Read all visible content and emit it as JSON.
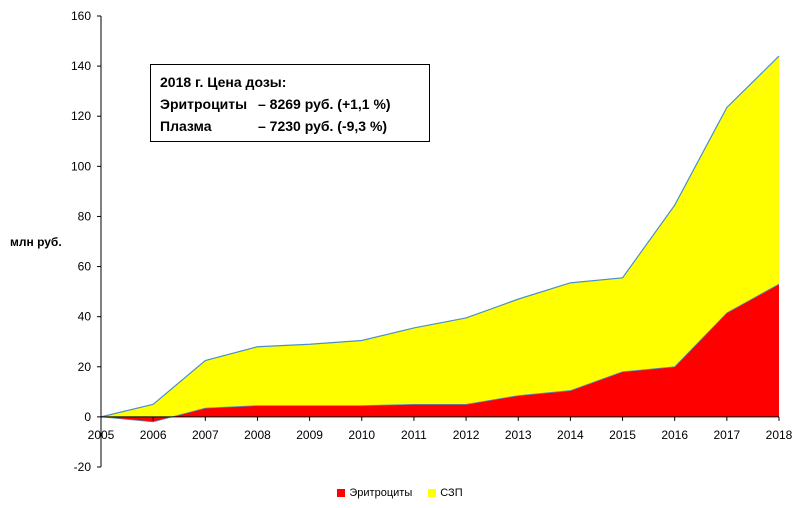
{
  "chart_data": {
    "type": "area",
    "stacked": true,
    "x": [
      2005,
      2006,
      2007,
      2008,
      2009,
      2010,
      2011,
      2012,
      2013,
      2014,
      2015,
      2016,
      2017,
      2018
    ],
    "series": [
      {
        "name": "Эритроциты",
        "color": "#ff0000",
        "values": [
          0,
          -2,
          3.5,
          4.5,
          4.5,
          4.5,
          5,
          5,
          8.5,
          10.5,
          18,
          20,
          41.5,
          53
        ]
      },
      {
        "name": "СЗП",
        "color": "#ffff00",
        "values": [
          0,
          7,
          19,
          23.5,
          24.5,
          26,
          30.5,
          34.5,
          38.5,
          43,
          37.5,
          64.5,
          82,
          91
        ]
      }
    ],
    "ylabel": "млн руб.",
    "ylim": [
      -20,
      160
    ],
    "yticks": [
      -20,
      0,
      20,
      40,
      60,
      80,
      100,
      120,
      140,
      160
    ],
    "grid": false,
    "legend": "bottom",
    "outline_color": "#4a90c8"
  },
  "annotation": {
    "title": "2018 г. Цена дозы:",
    "lines": [
      {
        "name": "Эритроциты",
        "value": "– 8269 руб. (+1,1 %)"
      },
      {
        "name": "Плазма",
        "value": "– 7230 руб. (-9,3 %)"
      }
    ]
  }
}
